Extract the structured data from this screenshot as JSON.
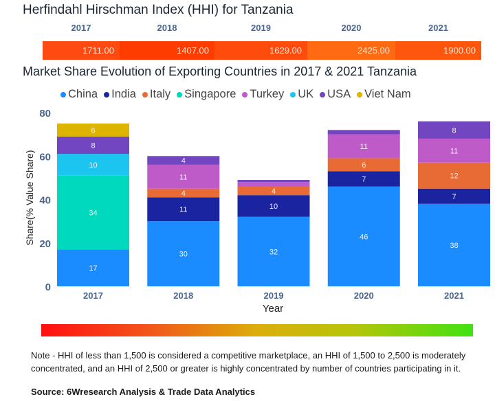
{
  "hhi": {
    "title": "Herfindahl Hirschman Index (HHI) for Tanzania",
    "years": [
      "2017",
      "2018",
      "2019",
      "2020",
      "2021"
    ],
    "values": [
      "1711.00",
      "1407.00",
      "1629.00",
      "2425.00",
      "1900.00"
    ],
    "colors": [
      "#ff4a12",
      "#ff3c00",
      "#ff4c0c",
      "#ff6a12",
      "#ff560e"
    ]
  },
  "chart_data": {
    "type": "bar",
    "stacked": true,
    "title": "Market Share Evolution of Exporting Countries in 2017 & 2021 Tanzania",
    "xlabel": "Year",
    "ylabel": "Share(% Value Share)",
    "categories": [
      "2017",
      "2018",
      "2019",
      "2020",
      "2021"
    ],
    "ylim": [
      0,
      80
    ],
    "yticks": [
      0,
      20,
      40,
      60,
      80
    ],
    "grid": false,
    "legend_position": "top",
    "label_min_value": 3,
    "series": [
      {
        "name": "China",
        "color": "#1a8cff",
        "values": [
          17,
          30,
          32,
          46,
          38
        ]
      },
      {
        "name": "India",
        "color": "#1a24a0",
        "values": [
          0,
          11,
          10,
          7,
          7
        ]
      },
      {
        "name": "Italy",
        "color": "#e86a35",
        "values": [
          0,
          4,
          4,
          6,
          12
        ]
      },
      {
        "name": "Singapore",
        "color": "#00d9be",
        "values": [
          34,
          0,
          0,
          0,
          0
        ]
      },
      {
        "name": "Turkey",
        "color": "#be5bc8",
        "values": [
          0,
          11,
          2,
          11,
          11
        ]
      },
      {
        "name": "UK",
        "color": "#1cc4f0",
        "values": [
          10,
          0,
          0,
          0,
          0
        ]
      },
      {
        "name": "USA",
        "color": "#7246c0",
        "values": [
          8,
          4,
          1,
          2,
          8
        ]
      },
      {
        "name": "Viet Nam",
        "color": "#ddb400",
        "values": [
          6,
          0,
          0,
          0,
          0
        ]
      }
    ]
  },
  "scale": {
    "colors": [
      "#ff0f10",
      "#dcae0a",
      "#40e212"
    ]
  },
  "note": "Note - HHI of less than 1,500 is considered a competitive marketplace, an HHI of 1,500 to 2,500 is moderately concentrated, and an HHI of 2,500 or greater is highly concentrated by number of countries participating in it.",
  "source": "Source: 6Wresearch Analysis & Trade Data Analytics"
}
